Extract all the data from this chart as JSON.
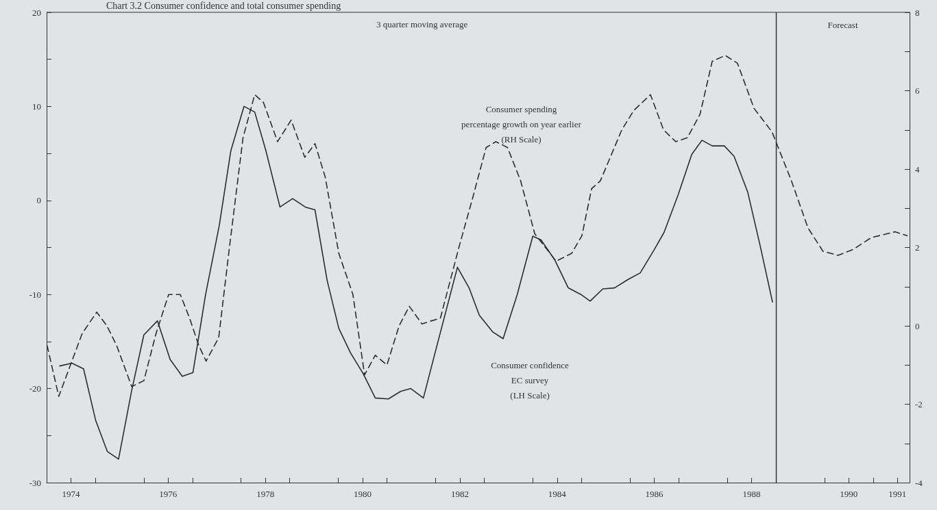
{
  "chart_data": {
    "type": "line",
    "title": "Chart 3.2 Consumer confidence and total consumer spending",
    "annotations": [
      "3 quarter moving average",
      "Consumer spending\npercentage growth on year earlier\n(RH Scale)",
      "Consumer confidence\nEC survey\n(LH Scale)"
    ],
    "series": [
      {
        "color": "#2b2b2b",
        "line_style": "solid",
        "x": [
          1974.27,
          1974.52,
          1974.76,
          1975.01,
          1975.25,
          1975.48,
          1975.75,
          1976.0,
          1976.28,
          1976.54,
          1976.79,
          1977.01,
          1977.27,
          1977.55,
          1977.79,
          1978.06,
          1978.28,
          1978.51,
          1978.8,
          1979.06,
          1979.32,
          1979.52,
          1979.77,
          1980.01,
          1980.25,
          1980.51,
          1980.76,
          1981.03,
          1981.28,
          1981.49,
          1981.75,
          1982.01,
          1982.45,
          1982.69,
          1982.9,
          1983.18,
          1983.39,
          1983.68,
          1984.0,
          1984.17,
          1984.45,
          1984.73,
          1984.99,
          1985.18,
          1985.44,
          1985.68,
          1985.96,
          1986.21,
          1986.49,
          1986.7,
          1986.99,
          1987.27,
          1987.48,
          1987.69,
          1987.94,
          1988.14,
          1988.42,
          1988.68,
          1988.93
        ],
        "values": [
          -17.6,
          -17.3,
          -17.9,
          -23.4,
          -26.7,
          -27.5,
          -20.2,
          -14.3,
          -12.8,
          -16.9,
          -18.7,
          -18.3,
          -10,
          -2.7,
          5.3,
          10,
          9.4,
          5.3,
          -0.7,
          0.2,
          -0.7,
          -1,
          -8.5,
          -13.6,
          -16.2,
          -18.4,
          -21.0,
          -21.1,
          -20.3,
          -20.0,
          -21.0,
          -15.8,
          -7.1,
          -9.3,
          -12.2,
          -14.0,
          -14.7,
          -10.0,
          -3.8,
          -4.2,
          -6.3,
          -9.3,
          -10,
          -10.7,
          -9.4,
          -9.3,
          -8.4,
          -7.7,
          -5.3,
          -3.4,
          0.6,
          4.9,
          6.4,
          5.8,
          5.8,
          4.7,
          0.9,
          -4.9,
          -10.8
        ]
      },
      {
        "axis": "y2",
        "color": "#2b2b2b",
        "line_style": "dashed",
        "x": [
          1974.01,
          1974.25,
          1974.52,
          1974.73,
          1975.03,
          1975.24,
          1975.44,
          1975.75,
          1976.0,
          1976.25,
          1976.51,
          1976.75,
          1976.94,
          1977.13,
          1977.28,
          1977.54,
          1977.76,
          1978.04,
          1978.28,
          1978.46,
          1978.75,
          1979.03,
          1979.31,
          1979.52,
          1979.73,
          1980.01,
          1980.3,
          1980.54,
          1980.76,
          1981.0,
          1981.25,
          1981.46,
          1981.72,
          1982.1,
          1982.48,
          1982.76,
          1983.04,
          1983.24,
          1983.48,
          1983.75,
          1984.04,
          1984.48,
          1984.8,
          1985.01,
          1985.21,
          1985.39,
          1985.83,
          1986.08,
          1986.42,
          1986.69,
          1986.94,
          1987.18,
          1987.44,
          1987.69,
          1987.96,
          1988.21,
          1988.55,
          1988.92,
          1989.32,
          1989.66,
          1989.97,
          1990.28,
          1990.59,
          1990.96,
          1991.45,
          1991.7
        ],
        "values": [
          -0.5,
          -1.8,
          -0.9,
          -0.2,
          0.35,
          0,
          -0.5,
          -1.55,
          -1.4,
          -0.2,
          0.8,
          0.8,
          0.2,
          -0.5,
          -0.9,
          -0.3,
          2.0,
          4.8,
          5.9,
          5.7,
          4.7,
          5.25,
          4.3,
          4.65,
          3.8,
          1.85,
          0.8,
          -1.25,
          -0.75,
          -1.0,
          0.0,
          0.5,
          0.05,
          0.2,
          2.0,
          3.25,
          4.55,
          4.7,
          4.55,
          3.7,
          2.35,
          1.65,
          1.85,
          2.3,
          3.5,
          3.7,
          5.0,
          5.5,
          5.9,
          5.0,
          4.7,
          4.8,
          5.4,
          6.75,
          6.9,
          6.7,
          5.55,
          4.95,
          3.7,
          2.5,
          1.9,
          1.8,
          1.95,
          2.25,
          2.4,
          2.3
        ]
      }
    ],
    "marker": "none",
    "xlim": [
      1974,
      1991.75
    ],
    "xticks": [
      {
        "value": 1974.5,
        "label": "1974"
      },
      {
        "value": 1975,
        "label": null
      },
      {
        "value": 1976,
        "label": null
      },
      {
        "value": 1976.5,
        "label": "1976"
      },
      {
        "value": 1977,
        "label": null
      },
      {
        "value": 1978,
        "label": null
      },
      {
        "value": 1978.5,
        "label": "1978"
      },
      {
        "value": 1979,
        "label": null
      },
      {
        "value": 1980,
        "label": null
      },
      {
        "value": 1980.5,
        "label": "1980"
      },
      {
        "value": 1981,
        "label": null
      },
      {
        "value": 1982,
        "label": null
      },
      {
        "value": 1982.5,
        "label": "1982"
      },
      {
        "value": 1983,
        "label": null
      },
      {
        "value": 1984,
        "label": null
      },
      {
        "value": 1984.5,
        "label": "1984"
      },
      {
        "value": 1985,
        "label": null
      },
      {
        "value": 1986,
        "label": null
      },
      {
        "value": 1986.5,
        "label": "1986"
      },
      {
        "value": 1987,
        "label": null
      },
      {
        "value": 1988,
        "label": null
      },
      {
        "value": 1988.5,
        "label": "1988"
      },
      {
        "value": 1989,
        "label": null
      },
      {
        "value": 1990,
        "label": null
      },
      {
        "value": 1990.5,
        "label": "1990"
      },
      {
        "value": 1991,
        "label": null
      },
      {
        "value": 1991.5,
        "label": "1991"
      }
    ],
    "ylim": [
      -30,
      20
    ],
    "yticks": [
      -30,
      {
        "value": -25,
        "label": null
      },
      -20,
      {
        "value": -15,
        "label": null
      },
      -10,
      {
        "value": -5,
        "label": null
      },
      0,
      {
        "value": 5,
        "label": null
      },
      10,
      {
        "value": 15,
        "label": null
      },
      20
    ],
    "y2lim": [
      -4,
      8
    ],
    "y2ticks": [
      -4,
      {
        "value": -3,
        "label": null
      },
      -2,
      {
        "value": -1,
        "label": null
      },
      0,
      {
        "value": 1,
        "label": null
      },
      2,
      {
        "value": 3,
        "label": null
      },
      4,
      {
        "value": 5,
        "label": null
      },
      6,
      {
        "value": 7,
        "label": null
      },
      8
    ],
    "ref_lines": [
      {
        "axis": "x",
        "value": 1989,
        "label": "Forecast",
        "color": "#2b2b2b",
        "line_style": "solid"
      }
    ],
    "grid": false
  }
}
